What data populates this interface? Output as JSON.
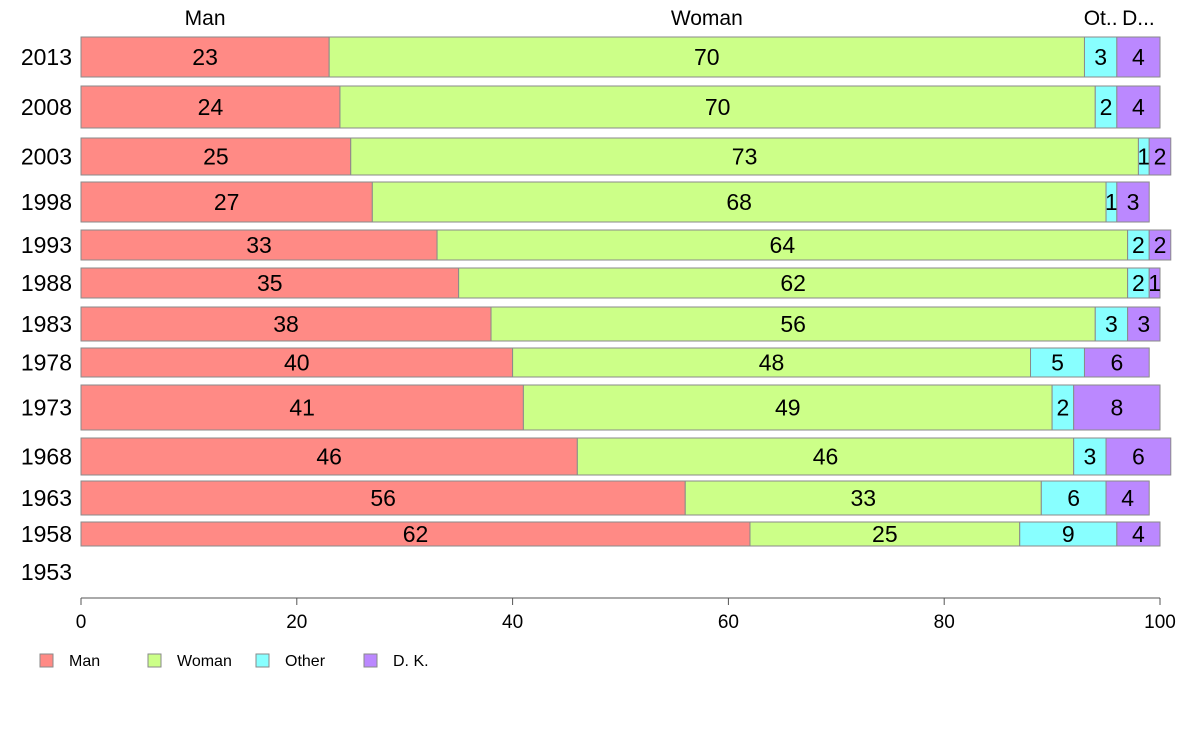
{
  "chart_data": {
    "type": "bar",
    "orientation": "horizontal",
    "stacked": true,
    "categories": [
      "2013",
      "2008",
      "2003",
      "1998",
      "1993",
      "1988",
      "1983",
      "1978",
      "1973",
      "1968",
      "1963",
      "1958",
      "1953"
    ],
    "series": [
      {
        "name": "Man",
        "color": "#ff8a85",
        "values": [
          23,
          24,
          25,
          27,
          33,
          35,
          38,
          40,
          41,
          46,
          56,
          62,
          null
        ]
      },
      {
        "name": "Woman",
        "color": "#ccff88",
        "values": [
          70,
          70,
          73,
          68,
          64,
          62,
          56,
          48,
          49,
          46,
          33,
          25,
          null
        ]
      },
      {
        "name": "Other",
        "color": "#88ffff",
        "values": [
          3,
          2,
          1,
          1,
          2,
          2,
          3,
          5,
          2,
          3,
          6,
          9,
          null
        ]
      },
      {
        "name": "D. K.",
        "color": "#bb88ff",
        "values": [
          4,
          4,
          2,
          3,
          2,
          1,
          3,
          6,
          8,
          6,
          4,
          4,
          null
        ]
      }
    ],
    "top_labels": [
      "Man",
      "Woman",
      "Ot..",
      "D..."
    ],
    "xlim": [
      0,
      100
    ],
    "xticks": [
      0,
      20,
      40,
      60,
      80,
      100
    ],
    "legend_position": "bottom-left",
    "grid": false,
    "title": "",
    "xlabel": "",
    "ylabel": ""
  }
}
